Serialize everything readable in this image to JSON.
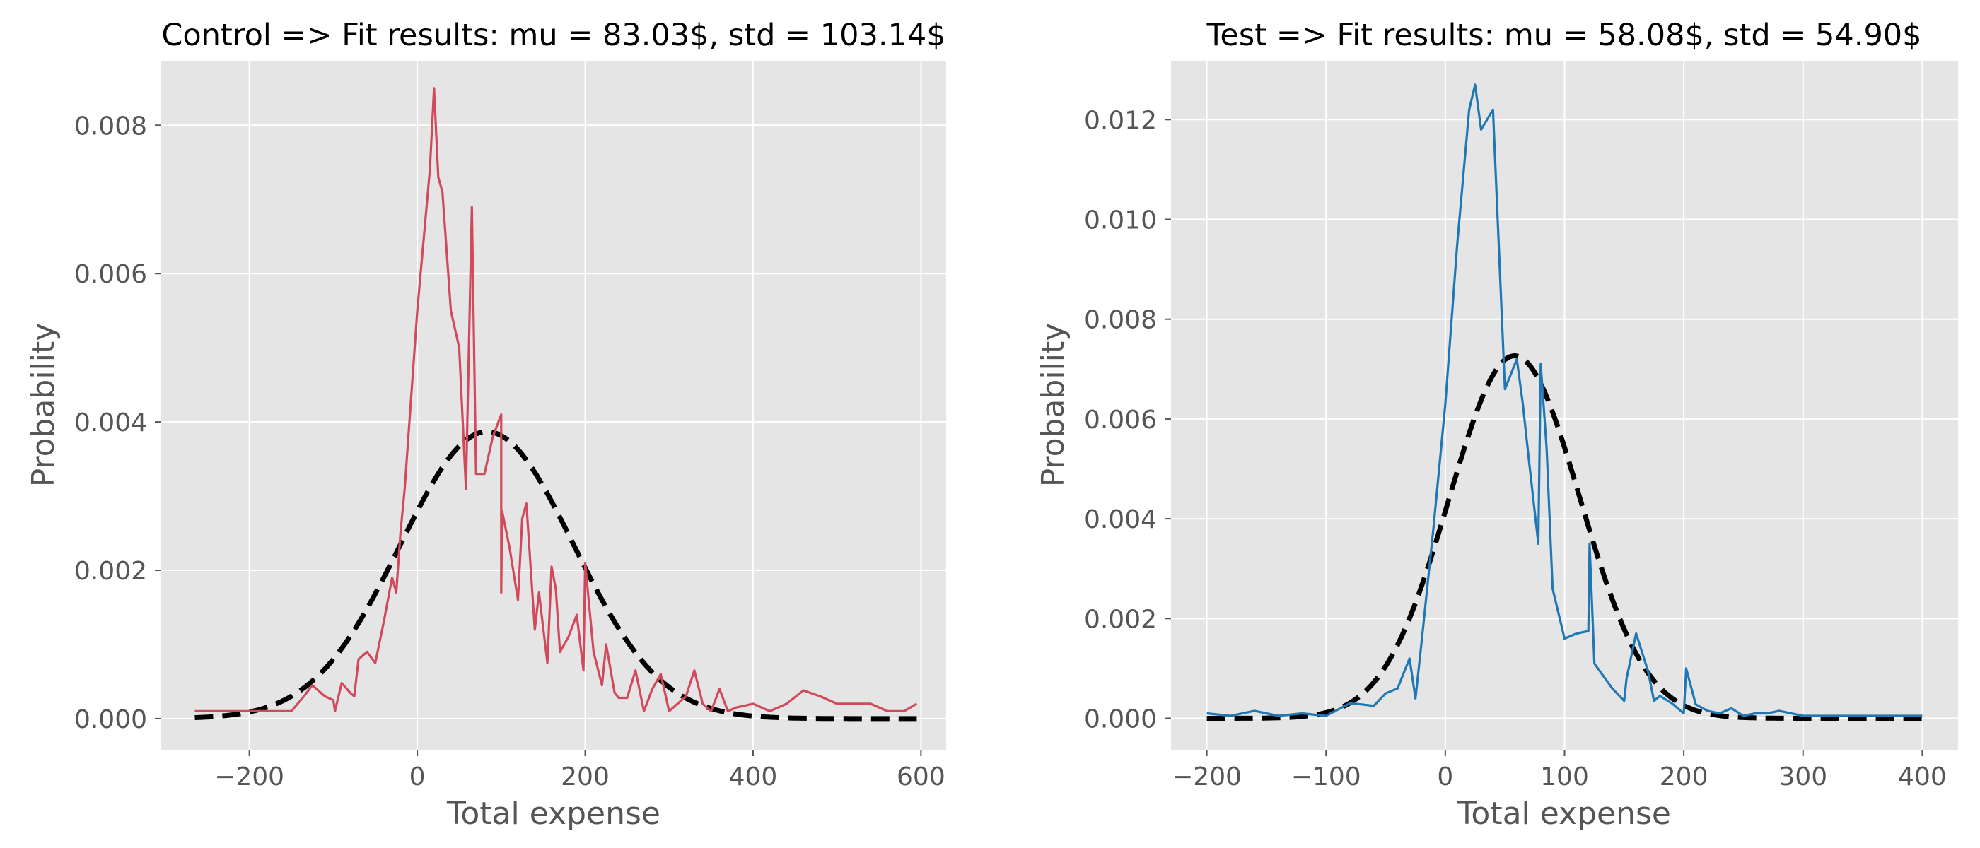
{
  "chart_data": [
    {
      "type": "line",
      "title": "Control => Fit results: mu = 83.03$,  std = 103.14$",
      "xlabel": "Total expense",
      "ylabel": "Probability",
      "xlim": [
        -305,
        630
      ],
      "ylim": [
        -0.00042,
        0.00887
      ],
      "xticks": [
        -200,
        0,
        200,
        400,
        600
      ],
      "xtick_labels": [
        "−200",
        "0",
        "200",
        "400",
        "600"
      ],
      "yticks": [
        0,
        0.002,
        0.004,
        0.006,
        0.008
      ],
      "ytick_labels": [
        "0.000",
        "0.002",
        "0.004",
        "0.006",
        "0.008"
      ],
      "grid": true,
      "fit": {
        "mu": 83.03,
        "std": 103.14,
        "style": "dashed",
        "color": "#000000"
      },
      "series": [
        {
          "color": "#d1495b",
          "style": "solid",
          "x": [
            -265,
            -240,
            -210,
            -180,
            -150,
            -135,
            -125,
            -110,
            -100,
            -98,
            -90,
            -80,
            -75,
            -70,
            -60,
            -50,
            -40,
            -30,
            -25,
            -20,
            -15,
            0,
            15,
            20,
            25,
            30,
            40,
            50,
            58,
            65,
            70,
            75,
            80,
            90,
            100,
            100,
            101,
            110,
            120,
            125,
            130,
            140,
            145,
            155,
            160,
            165,
            170,
            180,
            190,
            198,
            200,
            210,
            220,
            225,
            235,
            240,
            250,
            260,
            270,
            280,
            290,
            300,
            310,
            320,
            330,
            340,
            350,
            360,
            370,
            380,
            400,
            420,
            440,
            460,
            480,
            500,
            520,
            540,
            560,
            580,
            595
          ],
          "values": [
            0.0001,
            0.0001,
            0.0001,
            0.0001,
            0.0001,
            0.0003,
            0.00045,
            0.0003,
            0.00025,
            0.0001,
            0.00048,
            0.00035,
            0.0003,
            0.0008,
            0.0009,
            0.00075,
            0.0013,
            0.0019,
            0.0017,
            0.0025,
            0.0031,
            0.0055,
            0.0074,
            0.0085,
            0.0073,
            0.0071,
            0.0055,
            0.005,
            0.0031,
            0.0069,
            0.0033,
            0.0033,
            0.0033,
            0.0038,
            0.0041,
            0.0017,
            0.0028,
            0.0023,
            0.0016,
            0.0027,
            0.0029,
            0.0012,
            0.0017,
            0.00075,
            0.00205,
            0.00175,
            0.0009,
            0.0011,
            0.0014,
            0.00065,
            0.0021,
            0.0009,
            0.00045,
            0.001,
            0.00035,
            0.00028,
            0.00028,
            0.00065,
            0.0001,
            0.0004,
            0.0006,
            0.0001,
            0.0002,
            0.0003,
            0.00065,
            0.0002,
            0.0001,
            0.0004,
            0.0001,
            0.00015,
            0.0002,
            0.0001,
            0.0002,
            0.00038,
            0.0003,
            0.0002,
            0.0002,
            0.0002,
            0.0001,
            0.0001,
            0.0002
          ]
        }
      ]
    },
    {
      "type": "line",
      "title": "Test => Fit results: mu = 58.08$,  std = 54.90$",
      "xlabel": "Total expense",
      "ylabel": "Probability",
      "xlim": [
        -230,
        430
      ],
      "ylim": [
        -0.00063,
        0.01318
      ],
      "xticks": [
        -200,
        -100,
        0,
        100,
        200,
        300,
        400
      ],
      "xtick_labels": [
        "−200",
        "−100",
        "0",
        "100",
        "200",
        "300",
        "400"
      ],
      "yticks": [
        0,
        0.002,
        0.004,
        0.006,
        0.008,
        0.01,
        0.012
      ],
      "ytick_labels": [
        "0.000",
        "0.002",
        "0.004",
        "0.006",
        "0.008",
        "0.010",
        "0.012"
      ],
      "grid": true,
      "fit": {
        "mu": 58.08,
        "std": 54.9,
        "style": "dashed",
        "color": "#000000"
      },
      "series": [
        {
          "color": "#1f77b4",
          "style": "solid",
          "x": [
            -200,
            -180,
            -160,
            -150,
            -140,
            -120,
            -100,
            -80,
            -70,
            -60,
            -50,
            -40,
            -35,
            -30,
            -25,
            -20,
            -10,
            0,
            10,
            20,
            25,
            30,
            40,
            50,
            60,
            65,
            70,
            78,
            80,
            85,
            90,
            100,
            110,
            120,
            121,
            125,
            140,
            150,
            152,
            160,
            170,
            175,
            180,
            190,
            200,
            202,
            210,
            220,
            230,
            240,
            250,
            260,
            270,
            280,
            300,
            350,
            400
          ],
          "values": [
            0.0001,
            5e-05,
            0.00015,
            0.0001,
            5e-05,
            0.0001,
            5e-05,
            0.0003,
            0.00028,
            0.00025,
            0.0005,
            0.0006,
            0.0009,
            0.0012,
            0.0004,
            0.0015,
            0.0038,
            0.0063,
            0.0095,
            0.0122,
            0.0127,
            0.0118,
            0.0122,
            0.0066,
            0.0072,
            0.0063,
            0.0052,
            0.0035,
            0.0071,
            0.0054,
            0.0026,
            0.0016,
            0.0017,
            0.00175,
            0.0035,
            0.0011,
            0.0006,
            0.00035,
            0.0008,
            0.0017,
            0.00095,
            0.00035,
            0.00045,
            0.0003,
            0.0001,
            0.001,
            0.00028,
            0.00015,
            0.0001,
            0.0002,
            5e-05,
            0.0001,
            0.0001,
            0.00015,
            5e-05,
            5e-05,
            5e-05
          ]
        }
      ]
    }
  ]
}
